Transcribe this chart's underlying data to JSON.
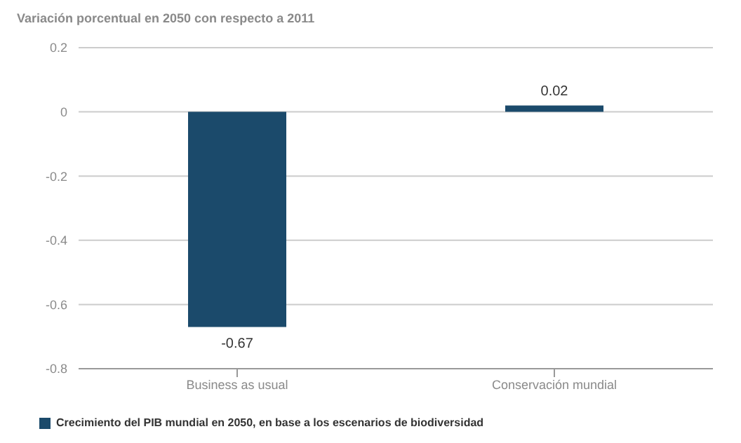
{
  "chart_data": {
    "type": "bar",
    "title": "Variación porcentual en 2050 con respecto a 2011",
    "categories": [
      "Business as usual",
      "Conservación mundial"
    ],
    "series": [
      {
        "name": "Crecimiento del PIB mundial en 2050, en base a los escenarios de biodiversidad",
        "color": "#1b4a6b",
        "values": [
          -0.67,
          0.02
        ]
      }
    ],
    "ylim": [
      -0.8,
      0.2
    ],
    "yticks": [
      -0.8,
      -0.6,
      -0.4,
      -0.2,
      0,
      0.2
    ],
    "grid": "y",
    "legend": "bottom left",
    "data_labels": true
  }
}
